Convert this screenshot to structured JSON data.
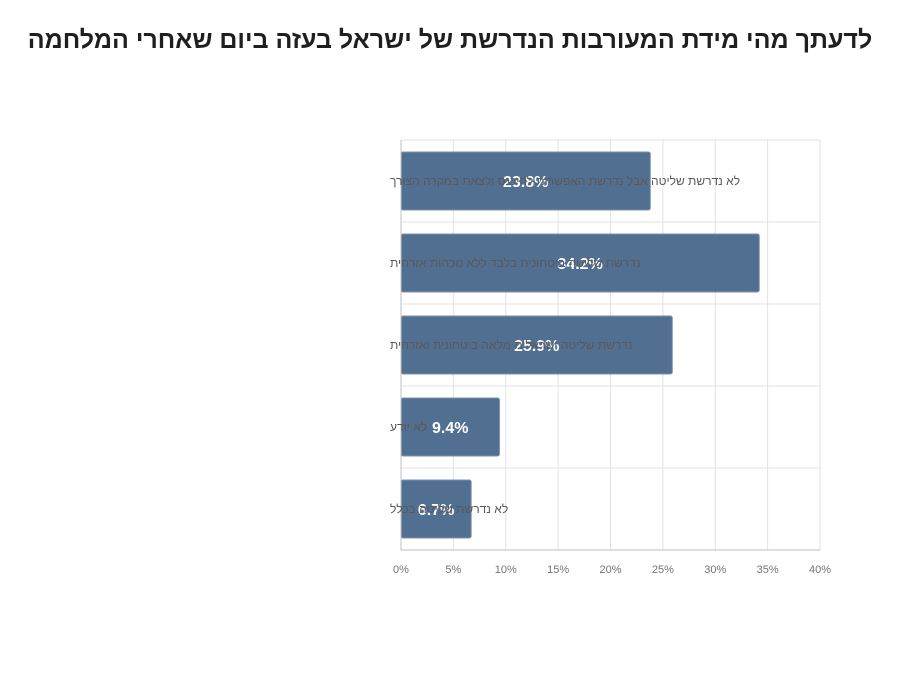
{
  "chart_data": {
    "type": "bar",
    "orientation": "horizontal",
    "title": "לדעתך מהי מידת המעורבות הנדרשת של ישראל בעזה ביום שאחרי המלחמה",
    "categories": [
      "לא נדרשת שליטה אבל נדרשת האפשרות להיכנס ולצאת במקרה הצורך",
      "נדרשת שליטה ביטחונית בלבד ללא נוכחות אזרחית",
      "נדרשת שליטה ישראלית מלאה ביטחונית ואזרחית",
      "לא יודע",
      "לא נדרשת שליטה בכלל"
    ],
    "values": [
      23.8,
      34.2,
      25.9,
      9.4,
      6.7
    ],
    "data_labels": [
      "23.8%",
      "34.2%",
      "25.9%",
      "9.4%",
      "6.7%"
    ],
    "xlim": [
      0,
      40
    ],
    "x_ticks": [
      0,
      5,
      10,
      15,
      20,
      25,
      30,
      35,
      40
    ],
    "x_tick_labels": [
      "0%",
      "5%",
      "10%",
      "15%",
      "20%",
      "25%",
      "30%",
      "35%",
      "40%"
    ],
    "xlabel": "",
    "ylabel": "",
    "grid": true,
    "legend": "none",
    "colors": {
      "bar": "#516f91",
      "bar_edge": "#7d93ad",
      "grid": "#e3e3e3",
      "axis": "#bfbfbf",
      "data_label": "#ffffff"
    }
  }
}
